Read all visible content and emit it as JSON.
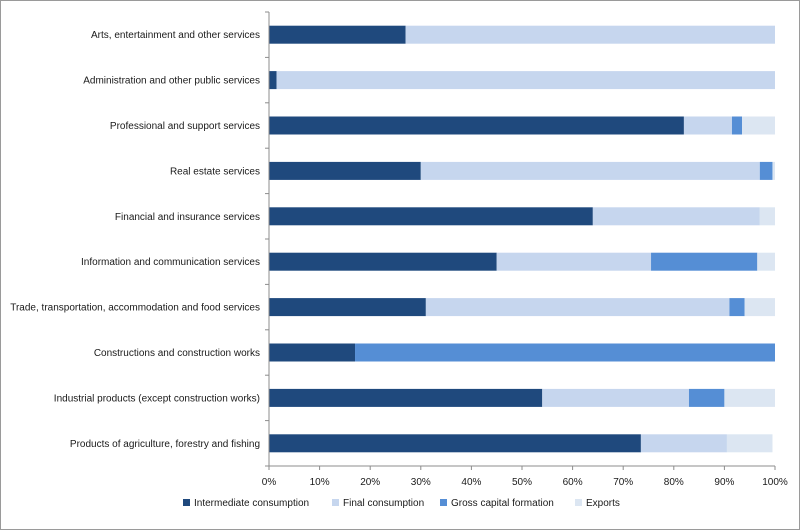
{
  "chart_data": {
    "type": "bar",
    "orientation": "horizontal",
    "stacked": "percent",
    "categories": [
      "Arts, entertainment and other services",
      "Administration and other public services",
      "Professional and support services",
      "Real estate services",
      "Financial and insurance services",
      "Information and communication services",
      "Trade, transportation, accommodation and food services",
      "Constructions and construction works",
      "Industrial products (except construction works)",
      "Products of agriculture, forestry and fishing"
    ],
    "series": [
      {
        "name": "Intermediate consumption",
        "color": "#1f497d",
        "values": [
          27,
          1.5,
          82,
          30,
          64,
          45,
          31,
          17,
          54,
          73.5
        ]
      },
      {
        "name": "Final consumption",
        "color": "#c6d6ee",
        "values": [
          73,
          98.5,
          9.5,
          67,
          33,
          30.5,
          60,
          0,
          29,
          17
        ]
      },
      {
        "name": "Gross capital formation",
        "color": "#558ed5",
        "values": [
          0,
          0,
          2,
          2.5,
          0,
          21,
          3,
          83,
          7,
          0
        ]
      },
      {
        "name": "Exports",
        "color": "#dce6f2",
        "values": [
          0,
          0,
          6.5,
          0.5,
          3,
          3.5,
          6,
          0,
          10,
          9
        ]
      }
    ],
    "xlim": [
      0,
      100
    ],
    "x_ticks": [
      "0%",
      "10%",
      "20%",
      "30%",
      "40%",
      "50%",
      "60%",
      "70%",
      "80%",
      "90%",
      "100%"
    ],
    "grid": false,
    "legend_position": "bottom",
    "title": "",
    "xlabel": "",
    "ylabel": ""
  }
}
